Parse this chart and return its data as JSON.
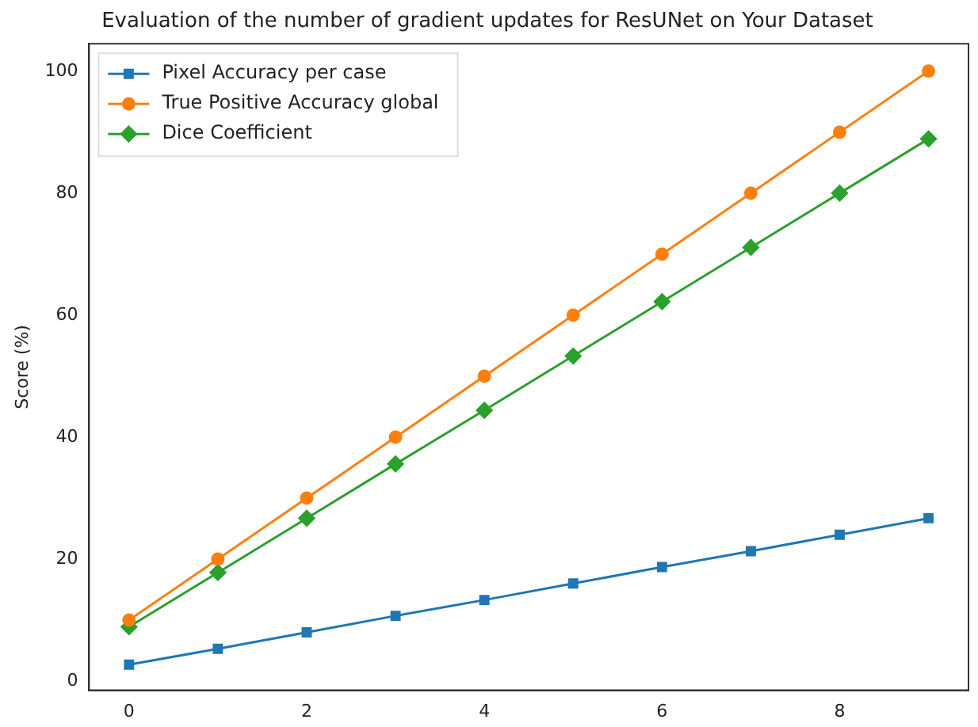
{
  "chart_data": {
    "type": "line",
    "title": "Evaluation of the number of gradient updates for ResUNet on Your Dataset",
    "ylabel": "Score (%)",
    "x": [
      0,
      1,
      2,
      3,
      4,
      5,
      6,
      7,
      8,
      9
    ],
    "xlim": [
      -0.45,
      9.45
    ],
    "xticks": [
      0,
      2,
      4,
      6,
      8
    ],
    "ylim": [
      -1.5,
      104.5
    ],
    "yticks": [
      0,
      20,
      40,
      60,
      80,
      100
    ],
    "grid": false,
    "legend": "top left",
    "line_style": "solid",
    "series": [
      {
        "name": "Pixel Accuracy per case",
        "color": "#1f77b4",
        "marker": "square",
        "values": [
          2.7,
          5.3,
          8,
          10.7,
          13.3,
          16,
          18.7,
          21.3,
          24,
          26.7
        ]
      },
      {
        "name": "True Positive Accuracy global",
        "color": "#ff7f0e",
        "marker": "circle",
        "values": [
          10,
          20,
          30,
          40,
          50,
          60,
          70,
          80,
          90,
          100
        ]
      },
      {
        "name": "Dice Coefficient",
        "color": "#2ca02c",
        "marker": "diamond",
        "values": [
          8.9,
          17.8,
          26.7,
          35.6,
          44.4,
          53.3,
          62.2,
          71.1,
          80,
          88.9
        ]
      }
    ]
  }
}
